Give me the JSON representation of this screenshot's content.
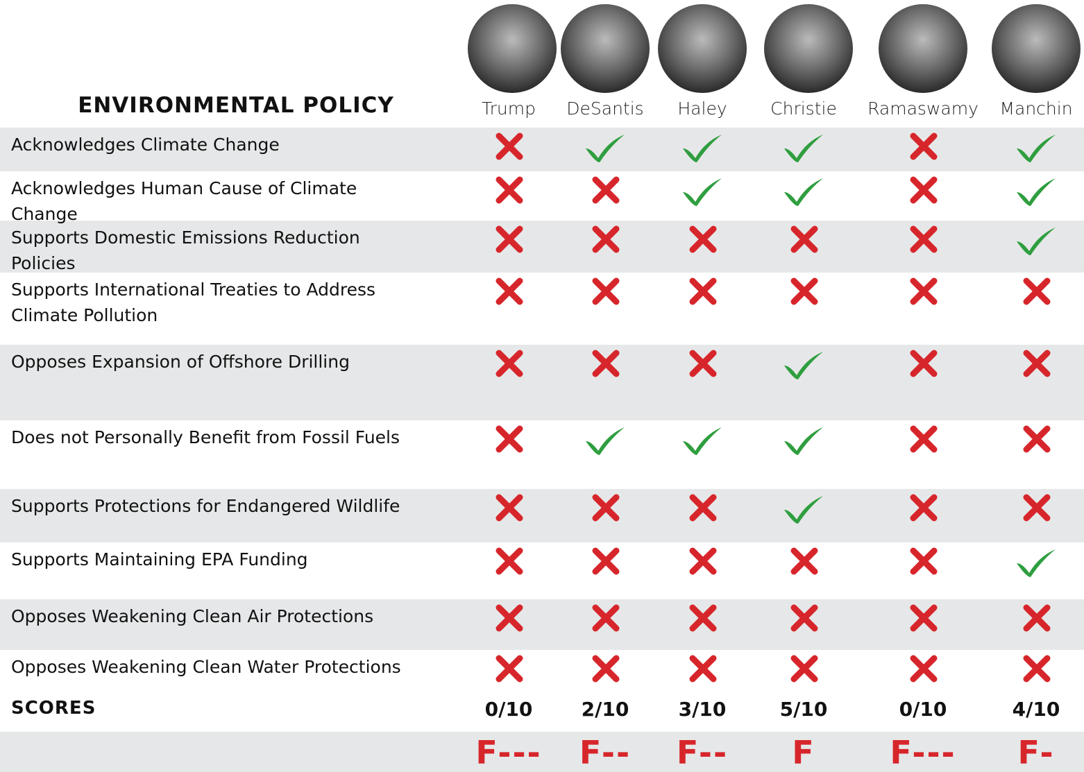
{
  "title": "ENVIRONMENTAL POLICY",
  "candidates": [
    "Trump",
    "DeSantis",
    "Haley",
    "Christie",
    "Ramaswamy",
    "Manchin"
  ],
  "rows": [
    {
      "label": "Acknowledges Climate Change",
      "marks": [
        false,
        true,
        true,
        true,
        false,
        true
      ]
    },
    {
      "label": "Acknowledges Human Cause of Climate Change",
      "marks": [
        false,
        false,
        true,
        true,
        false,
        true
      ]
    },
    {
      "label": "Supports Domestic Emissions Reduction Policies",
      "marks": [
        false,
        false,
        false,
        false,
        false,
        true
      ]
    },
    {
      "label": "Supports International Treaties to Address Climate Pollution",
      "marks": [
        false,
        false,
        false,
        false,
        false,
        false
      ]
    },
    {
      "label": "Opposes Expansion of Offshore Drilling",
      "marks": [
        false,
        false,
        false,
        true,
        false,
        false
      ]
    },
    {
      "label": "Does not Personally Benefit from Fossil Fuels",
      "marks": [
        false,
        true,
        true,
        true,
        false,
        false
      ]
    },
    {
      "label": "Supports Protections for Endangered Wildlife",
      "marks": [
        false,
        false,
        false,
        true,
        false,
        false
      ]
    },
    {
      "label": "Supports Maintaining EPA Funding",
      "marks": [
        false,
        false,
        false,
        false,
        false,
        true
      ]
    },
    {
      "label": "Opposes Weakening Clean Air Protections",
      "marks": [
        false,
        false,
        false,
        false,
        false,
        false
      ]
    },
    {
      "label": "Opposes Weakening Clean Water Protections",
      "marks": [
        false,
        false,
        false,
        false,
        false,
        false
      ]
    }
  ],
  "scores_label": "SCORES",
  "scores": [
    "0/10",
    "2/10",
    "3/10",
    "5/10",
    "0/10",
    "4/10"
  ],
  "grades": [
    "F---",
    "F--",
    "F--",
    "F",
    "F---",
    "F-"
  ]
}
